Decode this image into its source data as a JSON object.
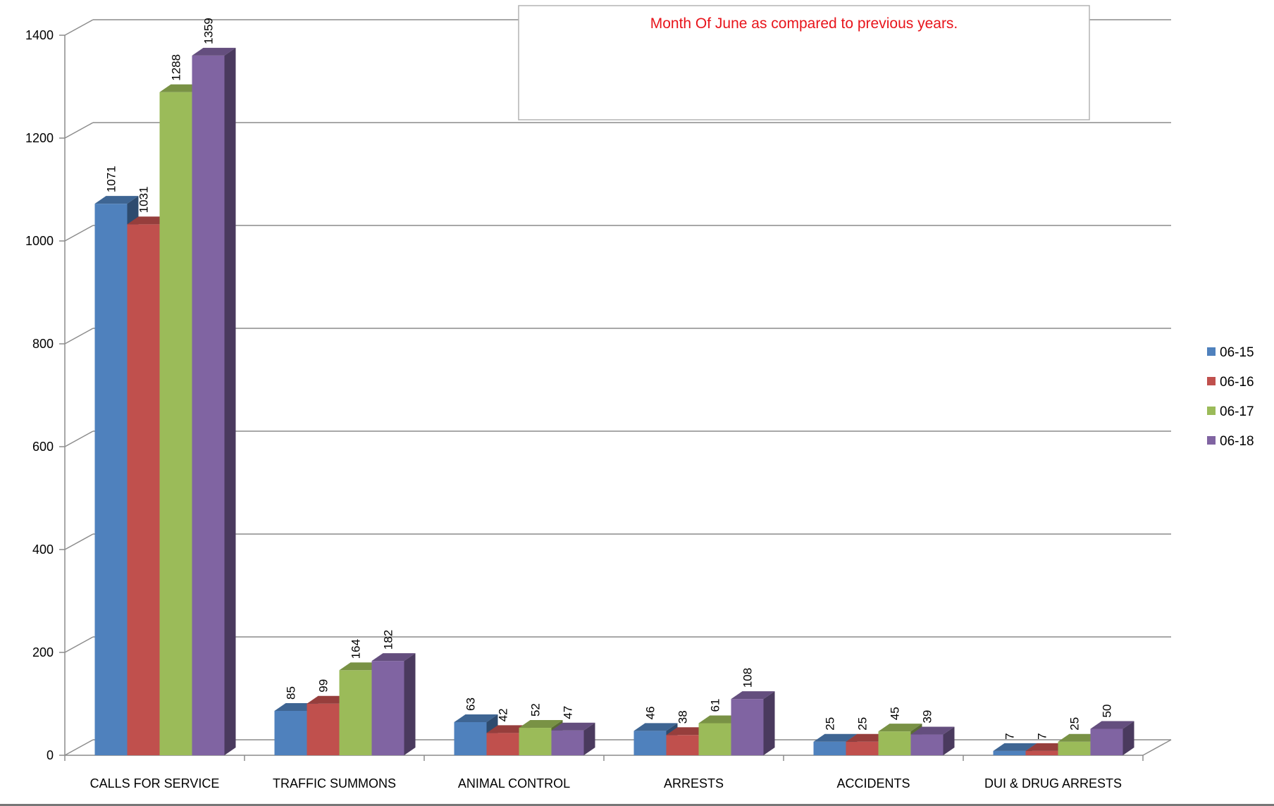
{
  "chart_data": {
    "type": "bar",
    "title": "Month Of June as compared to previous years.",
    "categories": [
      "CALLS FOR SERVICE",
      "TRAFFIC SUMMONS",
      "ANIMAL CONTROL",
      "ARRESTS",
      "ACCIDENTS",
      "DUI  & DRUG ARRESTS"
    ],
    "series": [
      {
        "name": "06-15",
        "color": "#4f81bd",
        "values": [
          1071,
          85,
          63,
          46,
          25,
          7
        ]
      },
      {
        "name": "06-16",
        "color": "#c0504d",
        "values": [
          1031,
          99,
          42,
          38,
          25,
          7
        ]
      },
      {
        "name": "06-17",
        "color": "#9bbb59",
        "values": [
          1288,
          164,
          52,
          61,
          45,
          25
        ]
      },
      {
        "name": "06-18",
        "color": "#8064a2",
        "values": [
          1359,
          182,
          47,
          108,
          39,
          50
        ]
      }
    ],
    "ylim": [
      0,
      1400
    ],
    "yticks": [
      0,
      200,
      400,
      600,
      800,
      1000,
      1200,
      1400
    ],
    "xlabel": "",
    "ylabel": "",
    "grid": true,
    "legend_position": "right",
    "style": "3d-clustered-column"
  }
}
